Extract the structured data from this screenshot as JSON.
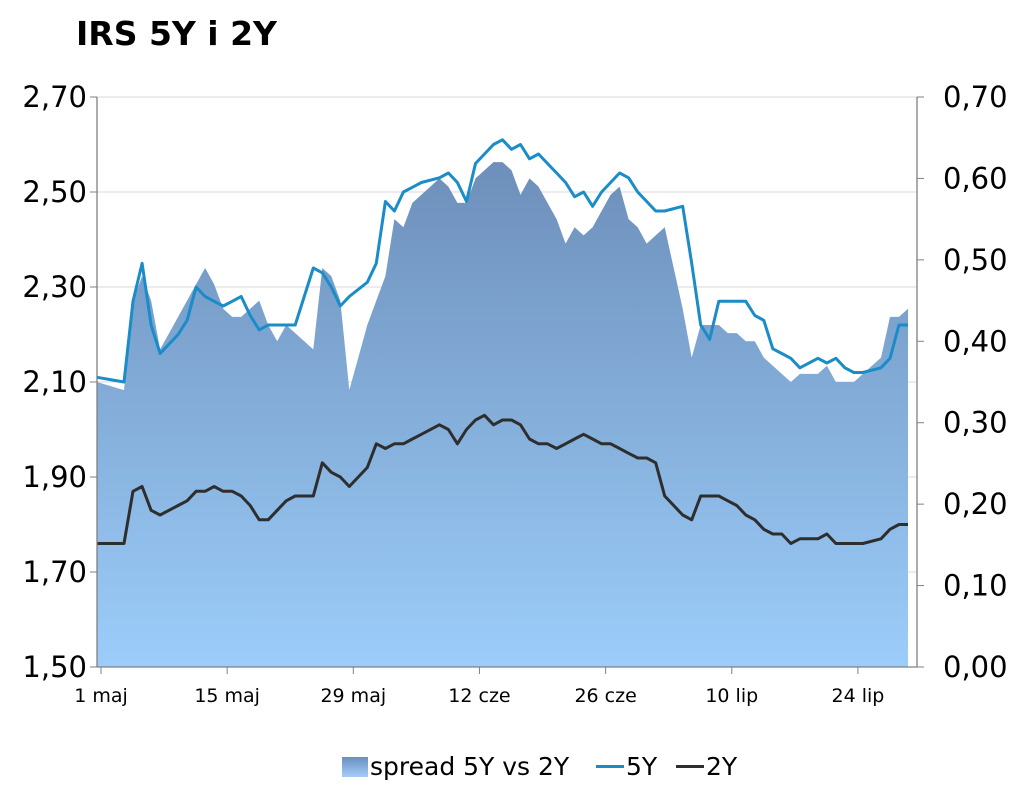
{
  "chart_data": {
    "type": "area+line",
    "title": "IRS 5Y i 2Y",
    "left_axis": {
      "min": 1.5,
      "max": 2.7,
      "ticks": [
        "1,50",
        "1,70",
        "1,90",
        "2,10",
        "2,30",
        "2,50",
        "2,70"
      ]
    },
    "right_axis": {
      "min": 0,
      "max": 0.7,
      "ticks": [
        "0,00",
        "0,10",
        "0,20",
        "0,30",
        "0,40",
        "0,50",
        "0,60",
        "0,70"
      ]
    },
    "x_ticks": [
      "1 maj",
      "15 maj",
      "29 maj",
      "12 cze",
      "26 cze",
      "10 lip",
      "24 lip"
    ],
    "x_day_range": [
      0,
      91
    ],
    "x_tick_days": [
      0,
      14,
      28,
      42,
      56,
      70,
      84
    ],
    "series": [
      {
        "name": "spread 5Y vs 2Y",
        "type": "area",
        "axis": "right",
        "days": [
          0,
          3,
          4,
          5,
          6,
          7,
          9,
          10,
          11,
          12,
          13,
          14,
          15,
          16,
          17,
          18,
          19,
          20,
          21,
          22,
          24,
          25,
          26,
          27,
          28,
          29,
          30,
          31,
          32,
          33,
          34,
          35,
          36,
          37,
          38,
          39,
          40,
          41,
          42,
          43,
          44,
          45,
          46,
          47,
          48,
          49,
          50,
          51,
          52,
          53,
          54,
          55,
          56,
          57,
          58,
          59,
          60,
          61,
          62,
          63,
          65,
          66,
          67,
          68,
          69,
          70,
          71,
          72,
          73,
          74,
          75,
          76,
          77,
          78,
          80,
          81,
          82,
          83,
          84,
          85,
          87,
          88,
          89,
          90
        ],
        "values": [
          0.35,
          0.34,
          0.45,
          0.48,
          0.45,
          0.39,
          0.43,
          0.45,
          0.47,
          0.49,
          0.47,
          0.44,
          0.43,
          0.43,
          0.44,
          0.45,
          0.42,
          0.4,
          0.42,
          0.41,
          0.39,
          0.49,
          0.48,
          0.45,
          0.34,
          0.38,
          0.42,
          0.45,
          0.48,
          0.55,
          0.54,
          0.57,
          0.58,
          0.59,
          0.6,
          0.59,
          0.57,
          0.57,
          0.6,
          0.61,
          0.62,
          0.62,
          0.61,
          0.58,
          0.6,
          0.59,
          0.57,
          0.55,
          0.52,
          0.54,
          0.53,
          0.54,
          0.56,
          0.58,
          0.59,
          0.55,
          0.54,
          0.52,
          0.53,
          0.54,
          0.44,
          0.38,
          0.42,
          0.42,
          0.42,
          0.41,
          0.41,
          0.4,
          0.4,
          0.38,
          0.37,
          0.36,
          0.35,
          0.36,
          0.36,
          0.37,
          0.35,
          0.35,
          0.35,
          0.36,
          0.38,
          0.43,
          0.43,
          0.44
        ]
      },
      {
        "name": "5Y",
        "type": "line",
        "axis": "left",
        "color": "#1a8cc7",
        "days": [
          0,
          3,
          4,
          5,
          6,
          7,
          9,
          10,
          11,
          12,
          13,
          14,
          15,
          16,
          17,
          18,
          19,
          20,
          21,
          22,
          24,
          25,
          26,
          27,
          28,
          30,
          31,
          32,
          33,
          34,
          35,
          36,
          38,
          39,
          40,
          41,
          42,
          43,
          44,
          45,
          46,
          47,
          48,
          49,
          50,
          51,
          52,
          53,
          54,
          55,
          56,
          57,
          58,
          59,
          60,
          61,
          62,
          63,
          65,
          66,
          67,
          68,
          69,
          70,
          71,
          72,
          73,
          74,
          75,
          76,
          77,
          78,
          80,
          81,
          82,
          83,
          84,
          85,
          87,
          88,
          89,
          90
        ],
        "values": [
          2.11,
          2.1,
          2.27,
          2.35,
          2.22,
          2.16,
          2.2,
          2.23,
          2.3,
          2.28,
          2.27,
          2.26,
          2.27,
          2.28,
          2.24,
          2.21,
          2.22,
          2.22,
          2.22,
          2.22,
          2.34,
          2.33,
          2.3,
          2.26,
          2.28,
          2.31,
          2.35,
          2.48,
          2.46,
          2.5,
          2.51,
          2.52,
          2.53,
          2.54,
          2.52,
          2.48,
          2.56,
          2.58,
          2.6,
          2.61,
          2.59,
          2.6,
          2.57,
          2.58,
          2.56,
          2.54,
          2.52,
          2.49,
          2.5,
          2.47,
          2.5,
          2.52,
          2.54,
          2.53,
          2.5,
          2.48,
          2.46,
          2.46,
          2.47,
          2.35,
          2.22,
          2.19,
          2.27,
          2.27,
          2.27,
          2.27,
          2.24,
          2.23,
          2.17,
          2.16,
          2.15,
          2.13,
          2.15,
          2.14,
          2.15,
          2.13,
          2.12,
          2.12,
          2.13,
          2.15,
          2.22,
          2.22
        ]
      },
      {
        "name": "2Y",
        "type": "line",
        "axis": "left",
        "color": "#2e2e2e",
        "days": [
          0,
          3,
          4,
          5,
          6,
          7,
          9,
          10,
          11,
          12,
          13,
          14,
          15,
          16,
          17,
          18,
          19,
          20,
          21,
          22,
          24,
          25,
          26,
          27,
          28,
          30,
          31,
          32,
          33,
          34,
          35,
          36,
          38,
          39,
          40,
          41,
          42,
          43,
          44,
          45,
          46,
          47,
          48,
          49,
          50,
          51,
          52,
          53,
          54,
          55,
          56,
          57,
          58,
          59,
          60,
          61,
          62,
          63,
          65,
          66,
          67,
          68,
          69,
          70,
          71,
          72,
          73,
          74,
          75,
          76,
          77,
          78,
          80,
          81,
          82,
          83,
          84,
          85,
          87,
          88,
          89,
          90
        ],
        "values": [
          1.76,
          1.76,
          1.87,
          1.88,
          1.83,
          1.82,
          1.84,
          1.85,
          1.87,
          1.87,
          1.88,
          1.87,
          1.87,
          1.86,
          1.84,
          1.81,
          1.81,
          1.83,
          1.85,
          1.86,
          1.86,
          1.93,
          1.91,
          1.9,
          1.88,
          1.92,
          1.97,
          1.96,
          1.97,
          1.97,
          1.98,
          1.99,
          2.01,
          2.0,
          1.97,
          2.0,
          2.02,
          2.03,
          2.01,
          2.02,
          2.02,
          2.01,
          1.98,
          1.97,
          1.97,
          1.96,
          1.97,
          1.98,
          1.99,
          1.98,
          1.97,
          1.97,
          1.96,
          1.95,
          1.94,
          1.94,
          1.93,
          1.86,
          1.82,
          1.81,
          1.86,
          1.86,
          1.86,
          1.85,
          1.84,
          1.82,
          1.81,
          1.79,
          1.78,
          1.78,
          1.76,
          1.77,
          1.77,
          1.78,
          1.76,
          1.76,
          1.76,
          1.76,
          1.77,
          1.79,
          1.8,
          1.8
        ]
      }
    ],
    "legend": [
      "spread 5Y vs 2Y",
      "5Y",
      "2Y"
    ],
    "legend_position": "bottom"
  }
}
